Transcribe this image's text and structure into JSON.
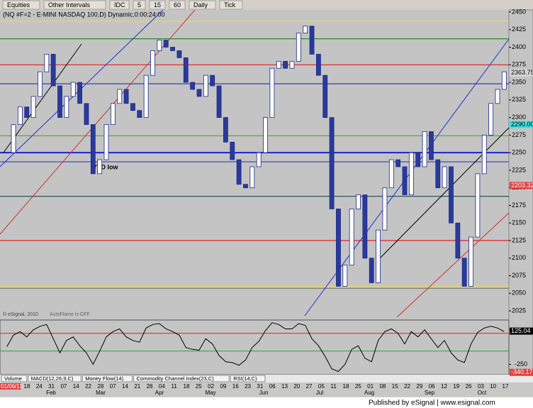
{
  "toolbar": {
    "items": [
      "Equities",
      "Other Intervals",
      "IDC",
      "5",
      "15",
      "60",
      "Daily",
      "Tick"
    ]
  },
  "chart_data": {
    "type": "candlestick",
    "title": "(NQ #F=2 - E-MINI NASDAQ 100,D) Dynamic,0:00:24:00",
    "closes": [
      2250,
      2290,
      2315,
      2300,
      2330,
      2365,
      2390,
      2345,
      2300,
      2330,
      2350,
      2320,
      2290,
      2220,
      2240,
      2290,
      2320,
      2340,
      2320,
      2310,
      2300,
      2360,
      2395,
      2410,
      2400,
      2395,
      2385,
      2350,
      2340,
      2330,
      2360,
      2345,
      2300,
      2265,
      2240,
      2205,
      2200,
      2230,
      2250,
      2300,
      2370,
      2380,
      2370,
      2380,
      2420,
      2430,
      2390,
      2360,
      2300,
      2170,
      2060,
      2090,
      2170,
      2190,
      2100,
      2065,
      2140,
      2200,
      2240,
      2230,
      2190,
      2250,
      2230,
      2280,
      2240,
      2200,
      2230,
      2150,
      2100,
      2060,
      2130,
      2220,
      2275,
      2320,
      2340,
      2365
    ],
    "up_color": "#ffffff",
    "down_color": "#2a3a9a",
    "outline_color": "#1a2a8a",
    "ylim": [
      2012,
      2453
    ],
    "yticks": [
      2025,
      2050,
      2075,
      2100,
      2125,
      2150,
      2175,
      2200,
      2225,
      2250,
      2275,
      2300,
      2325,
      2350,
      2375,
      2400,
      2425,
      2450
    ],
    "levels": [
      {
        "value": 2437,
        "color": "#e6d85a"
      },
      {
        "value": 2412,
        "color": "#2a8a2a"
      },
      {
        "value": 2375,
        "color": "#e02020"
      },
      {
        "value": 2348,
        "color": "#2030c0"
      },
      {
        "value": 2274,
        "color": "#70a030"
      },
      {
        "value": 2250,
        "color": "#2020d0"
      },
      {
        "value": 2237,
        "color": "#3040c0"
      },
      {
        "value": 2188,
        "color": "#305858"
      },
      {
        "value": 2125,
        "color": "#e02020"
      },
      {
        "value": 2060,
        "color": "#e6d85a"
      },
      {
        "value": 2057,
        "color": "#808080"
      }
    ],
    "price_labels": [
      {
        "value": 2363.75,
        "label": "2363.75",
        "color": "#d8d8d8"
      },
      {
        "value": 2290,
        "label": "2290.00",
        "color": "#40e0e0"
      },
      {
        "value": 2203.32,
        "label": "2203.32",
        "color": "#e04040"
      }
    ],
    "annotations": [
      "YTD low",
      "© eSignal, 2010",
      "AutoFlame is OFF"
    ],
    "start_date": "01/06/11",
    "days": [
      "18",
      "24",
      "31",
      "07",
      "14",
      "22",
      "28",
      "07",
      "14",
      "21",
      "28",
      "04",
      "11",
      "18",
      "25",
      "02",
      "09",
      "16",
      "23",
      "31",
      "06",
      "13",
      "20",
      "27",
      "05",
      "11",
      "18",
      "25",
      "01",
      "08",
      "15",
      "22",
      "29",
      "06",
      "12",
      "19",
      "26",
      "03",
      "10",
      "17"
    ],
    "months": [
      "Feb",
      "Mar",
      "Apr",
      "May",
      "Jun",
      "Jul",
      "Aug",
      "Sep",
      "Oct"
    ],
    "oscillator": {
      "values": [
        -50,
        80,
        120,
        60,
        140,
        180,
        200,
        40,
        -120,
        20,
        60,
        -40,
        -120,
        -250,
        -100,
        60,
        120,
        150,
        60,
        20,
        0,
        160,
        200,
        210,
        150,
        120,
        80,
        -60,
        -80,
        -90,
        40,
        -20,
        -150,
        -220,
        -230,
        -260,
        -200,
        -60,
        10,
        130,
        220,
        200,
        150,
        150,
        210,
        190,
        40,
        -40,
        -160,
        -300,
        -330,
        -250,
        -80,
        -40,
        -180,
        -220,
        20,
        120,
        150,
        100,
        -20,
        120,
        60,
        140,
        40,
        -60,
        20,
        -120,
        -200,
        -230,
        -20,
        110,
        160,
        180,
        160,
        120
      ],
      "ylim": [
        -350,
        250
      ],
      "yticks": [
        -250
      ],
      "levels": [
        {
          "value": 100,
          "color": "#e02020"
        },
        {
          "value": -100,
          "color": "#30a030"
        }
      ],
      "markers": [
        {
          "value": 125.04,
          "label": "125.04",
          "color": "#000000"
        },
        {
          "value": -340.17,
          "label": "-340.17",
          "color": "#e04040"
        }
      ]
    },
    "tabs": [
      "Volume",
      "MACD(12,26,9,C)",
      "Money Flow(14)",
      "Commodity Channel Index(23,C)",
      "RSI(14,C)"
    ]
  },
  "footer": "Published by eSignal | www.esignal.com"
}
